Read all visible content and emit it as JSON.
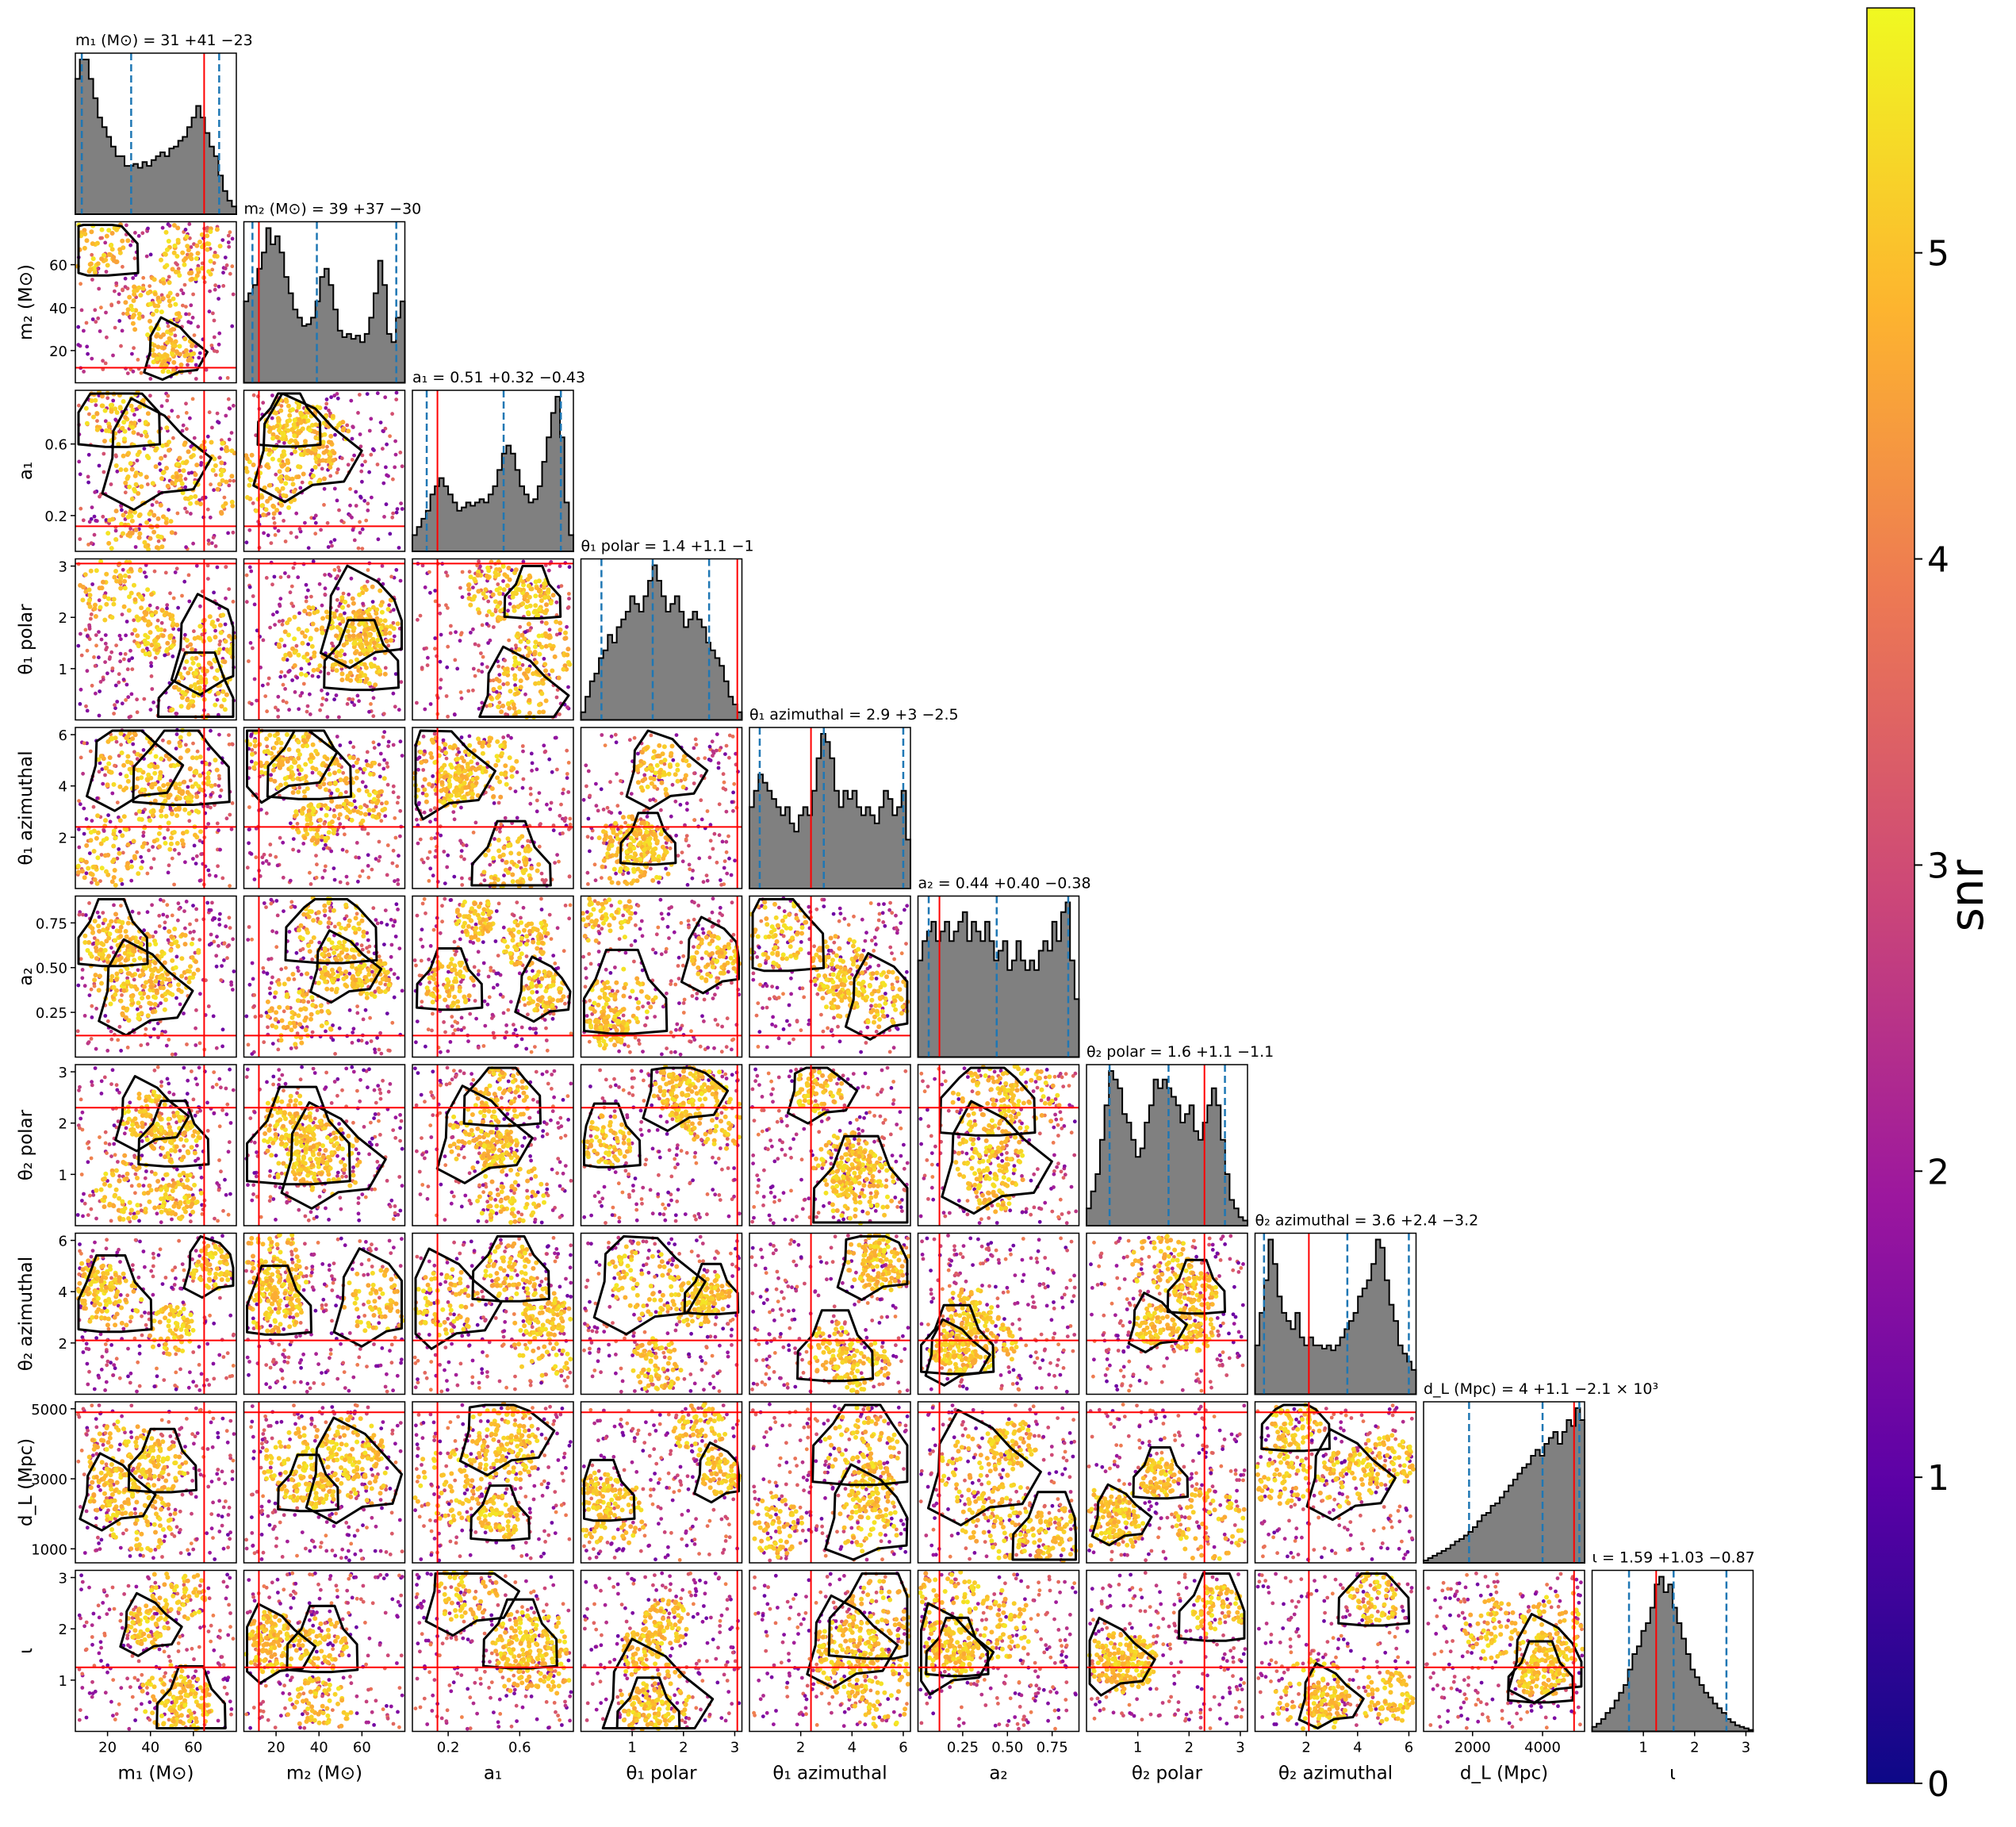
{
  "chart_data": {
    "type": "corner",
    "colorbar": {
      "label": "snr",
      "range": [
        0,
        5.8
      ],
      "ticks": [
        "0",
        "1",
        "2",
        "3",
        "4",
        "5"
      ],
      "colormap": [
        "#0d0887",
        "#5c01a6",
        "#9c179e",
        "#cc4778",
        "#ed7953",
        "#fdb42f",
        "#f0f921"
      ]
    },
    "parameters": [
      {
        "key": "m1",
        "label": "m₁ (M⊙)",
        "title": "m₁ (M⊙) = 31 +41 −23",
        "range": [
          5,
          80
        ],
        "ticks": [
          20,
          40,
          60
        ],
        "ticklabels": [
          "20",
          "40",
          "60"
        ],
        "truth": 65,
        "quantiles": [
          8,
          31,
          72
        ],
        "hist": [
          7,
          8,
          8,
          7,
          6,
          5,
          4.5,
          4,
          3.5,
          3,
          3,
          2.5,
          2.5,
          2.6,
          2.4,
          2.7,
          2.5,
          2.8,
          3,
          3.2,
          3,
          3.4,
          3.5,
          3.8,
          4,
          4.5,
          5,
          5.6,
          5,
          4.2,
          3.5,
          3,
          2,
          1.2,
          0.7,
          0.4
        ]
      },
      {
        "key": "m2",
        "label": "m₂ (M⊙)",
        "title": "m₂ (M⊙) = 39 +37 −30",
        "range": [
          5,
          80
        ],
        "ticks": [
          20,
          40,
          60
        ],
        "ticklabels": [
          "20",
          "40",
          "60"
        ],
        "truth": 12,
        "quantiles": [
          9,
          39,
          76
        ],
        "hist": [
          5,
          5.5,
          6,
          7,
          8,
          9.5,
          8.5,
          9,
          8,
          6.5,
          5.5,
          4.5,
          4,
          3.5,
          3.6,
          4,
          5,
          6.5,
          7,
          6,
          4.5,
          3.2,
          2.8,
          3,
          2.7,
          2.9,
          2.5,
          3,
          4,
          5.5,
          7.5,
          6,
          3,
          2.5,
          4,
          5
        ]
      },
      {
        "key": "a1",
        "label": "a₁",
        "title": "a₁ = 0.51 +0.32 −0.43",
        "range": [
          0,
          0.9
        ],
        "ticks": [
          0.2,
          0.6
        ],
        "ticklabels": [
          "0.2",
          "0.6"
        ],
        "truth": 0.14,
        "quantiles": [
          0.08,
          0.51,
          0.83
        ],
        "hist": [
          1,
          1.5,
          2,
          2.5,
          3.5,
          4,
          4.5,
          4,
          3.5,
          3,
          2.5,
          2.7,
          3,
          2.8,
          3,
          3.2,
          3,
          3.5,
          4,
          5,
          6,
          6.5,
          6,
          5,
          4,
          3.5,
          3,
          3.2,
          4,
          5.5,
          7,
          8.5,
          9.5,
          7,
          3,
          1
        ]
      },
      {
        "key": "t1p",
        "label": "θ₁ polar",
        "title": "θ₁ polar = 1.4 +1.1 −1",
        "range": [
          0,
          3.14
        ],
        "ticks": [
          1,
          2,
          3
        ],
        "ticklabels": [
          "1",
          "2",
          "3"
        ],
        "truth": 3.05,
        "quantiles": [
          0.4,
          1.4,
          2.5
        ],
        "hist": [
          0.5,
          1.5,
          2.5,
          3,
          4,
          4.5,
          5.5,
          5,
          6,
          6.5,
          7,
          8,
          7.5,
          7,
          8,
          9,
          10,
          9,
          8,
          7,
          7.5,
          8,
          7,
          6,
          6.5,
          7,
          6.5,
          6,
          5,
          4.5,
          4,
          3.5,
          2.5,
          1.5,
          1,
          0.5
        ]
      },
      {
        "key": "t1a",
        "label": "θ₁ azimuthal",
        "title": "θ₁ azimuthal = 2.9 +3 −2.5",
        "range": [
          0,
          6.28
        ],
        "ticks": [
          2,
          4,
          6
        ],
        "ticklabels": [
          "2",
          "4",
          "6"
        ],
        "truth": 2.4,
        "quantiles": [
          0.4,
          2.9,
          6.0
        ],
        "hist": [
          5,
          6,
          7,
          6.5,
          6,
          5.5,
          5,
          4.5,
          5,
          4,
          3.5,
          4.5,
          5,
          4.5,
          6,
          8,
          9.5,
          9,
          8,
          6,
          5,
          6,
          5.5,
          6,
          5,
          4.5,
          5,
          4.5,
          4,
          5,
          6,
          5.5,
          4.5,
          5,
          6,
          3
        ]
      },
      {
        "key": "a2",
        "label": "a₂",
        "title": "a₂ = 0.44 +0.40 −0.38",
        "range": [
          0,
          0.9
        ],
        "ticks": [
          0.25,
          0.5,
          0.75
        ],
        "ticklabels": [
          "0.25",
          "0.50",
          "0.75"
        ],
        "truth": 0.12,
        "quantiles": [
          0.06,
          0.44,
          0.84
        ],
        "hist": [
          5,
          6,
          6.5,
          7,
          6,
          6.5,
          7,
          6,
          6.5,
          7,
          7.5,
          6,
          7,
          6.5,
          6,
          7,
          6,
          5,
          5.5,
          6,
          4.5,
          5,
          6,
          5,
          4.5,
          5,
          4.5,
          5.5,
          6,
          5.5,
          7,
          6,
          7.5,
          8,
          5,
          3
        ]
      },
      {
        "key": "t2p",
        "label": "θ₂ polar",
        "title": "θ₂ polar = 1.6 +1.1 −1.1",
        "range": [
          0,
          3.14
        ],
        "ticks": [
          1,
          2,
          3
        ],
        "ticklabels": [
          "1",
          "2",
          "3"
        ],
        "truth": 2.3,
        "quantiles": [
          0.45,
          1.6,
          2.7
        ],
        "hist": [
          1,
          2,
          3,
          5,
          7,
          9,
          8.5,
          8,
          6.5,
          6,
          5,
          4,
          4.5,
          6,
          7,
          8.5,
          8,
          8.5,
          8,
          7.5,
          7,
          6,
          6.5,
          7,
          5.5,
          5,
          6,
          7,
          8,
          7,
          5,
          3,
          1.5,
          1,
          0.5,
          0.3
        ]
      },
      {
        "key": "t2a",
        "label": "θ₂ azimuthal",
        "title": "θ₂ azimuthal = 3.6 +2.4 −3.2",
        "range": [
          0,
          6.28
        ],
        "ticks": [
          2,
          4,
          6
        ],
        "ticklabels": [
          "2",
          "4",
          "6"
        ],
        "truth": 2.1,
        "quantiles": [
          0.35,
          3.6,
          6.0
        ],
        "hist": [
          3,
          5,
          7,
          9.5,
          8,
          6,
          5,
          4.5,
          4,
          5,
          3.5,
          3,
          3.5,
          3,
          3,
          2.8,
          3,
          2.7,
          3,
          3.5,
          4,
          4.5,
          5,
          6,
          6.5,
          7,
          8,
          9.5,
          9,
          7,
          5.5,
          4.5,
          3,
          2.5,
          2,
          1.5
        ]
      },
      {
        "key": "dl",
        "label": "d_L (Mpc)",
        "title": "d_L (Mpc) = 4 +1.1 −2.1 × 10³",
        "range": [
          600,
          5200
        ],
        "ticks": [
          1000,
          3000,
          5000
        ],
        "ticklabels": [
          "1000",
          "3000",
          "5000"
        ],
        "tick2": [
          2000,
          4000
        ],
        "tick2labels": [
          "2000",
          "4000"
        ],
        "truth": 4900,
        "quantiles": [
          1900,
          4000,
          5050
        ],
        "hist": [
          0.2,
          0.4,
          0.6,
          0.8,
          1,
          1.2,
          1.5,
          1.8,
          2,
          2.3,
          2.6,
          3,
          3.5,
          4,
          4.2,
          4.8,
          5,
          5.5,
          6,
          6.5,
          7,
          7.5,
          8,
          8.3,
          9,
          9.5,
          9,
          10,
          10.5,
          11,
          10,
          11,
          12,
          11.5,
          13,
          12
        ]
      },
      {
        "key": "iota",
        "label": "ι",
        "title": "ι = 1.59 +1.03 −0.87",
        "range": [
          0,
          3.14
        ],
        "ticks": [
          1,
          2,
          3
        ],
        "ticklabels": [
          "1",
          "2",
          "3"
        ],
        "truth": 1.25,
        "quantiles": [
          0.72,
          1.59,
          2.62
        ],
        "hist": [
          0.3,
          0.5,
          0.8,
          1.2,
          1.5,
          2,
          2.5,
          3,
          4,
          5,
          5.5,
          6.5,
          7,
          8,
          9.5,
          10,
          9,
          9.5,
          8,
          7,
          6,
          5,
          4,
          3.5,
          3,
          2.5,
          2.2,
          1.8,
          1.5,
          1.2,
          0.8,
          0.6,
          0.4,
          0.3,
          0.2,
          0.1
        ]
      }
    ]
  }
}
